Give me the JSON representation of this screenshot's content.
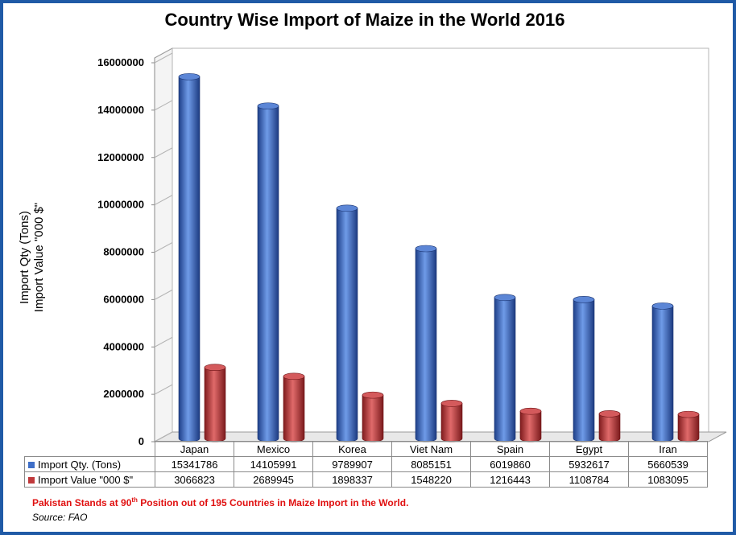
{
  "title": "Country Wise Import of Maize in the World 2016",
  "ylabel_line1": "Import Qty (Tons)",
  "ylabel_line2": "Import Value \"000 $\"",
  "chart_data": {
    "type": "bar",
    "title": "Country Wise Import of Maize in the World 2016",
    "ylabel": "Import Qty (Tons) / Import Value \"000 $\"",
    "categories": [
      "Japan",
      "Mexico",
      "Korea",
      "Viet Nam",
      "Spain",
      "Egypt",
      "Iran"
    ],
    "series": [
      {
        "name": "Import Qty. (Tons)",
        "color": "#3f6fc8",
        "values": [
          15341786,
          14105991,
          9789907,
          8085151,
          6019860,
          5932617,
          5660539
        ]
      },
      {
        "name": "Import Value \"000 $\"",
        "color": "#c0393b",
        "values": [
          3066823,
          2689945,
          1898337,
          1548220,
          1216443,
          1108784,
          1083095
        ]
      }
    ],
    "ylim": [
      0,
      16000000
    ],
    "yticks": [
      0,
      2000000,
      4000000,
      6000000,
      8000000,
      10000000,
      12000000,
      14000000,
      16000000
    ],
    "ytick_labels": [
      "0",
      "2000000",
      "4000000",
      "6000000",
      "8000000",
      "10000000",
      "12000000",
      "14000000",
      "16000000"
    ],
    "grid": false,
    "legend": "data-table"
  },
  "table": {
    "rows": [
      {
        "label": "Import Qty. (Tons)",
        "color": "#3f6fc8",
        "values": [
          "15341786",
          "14105991",
          "9789907",
          "8085151",
          "6019860",
          "5932617",
          "5660539"
        ]
      },
      {
        "label": "Import Value \"000 $\"",
        "color": "#c0393b",
        "values": [
          "3066823",
          "2689945",
          "1898337",
          "1548220",
          "1216443",
          "1108784",
          "1083095"
        ]
      }
    ]
  },
  "note_before": "Pakistan Stands at 90",
  "note_sup": "th",
  "note_after": " Position out of 195 Countries in Maize Import in the World.",
  "source": "Source: FAO"
}
